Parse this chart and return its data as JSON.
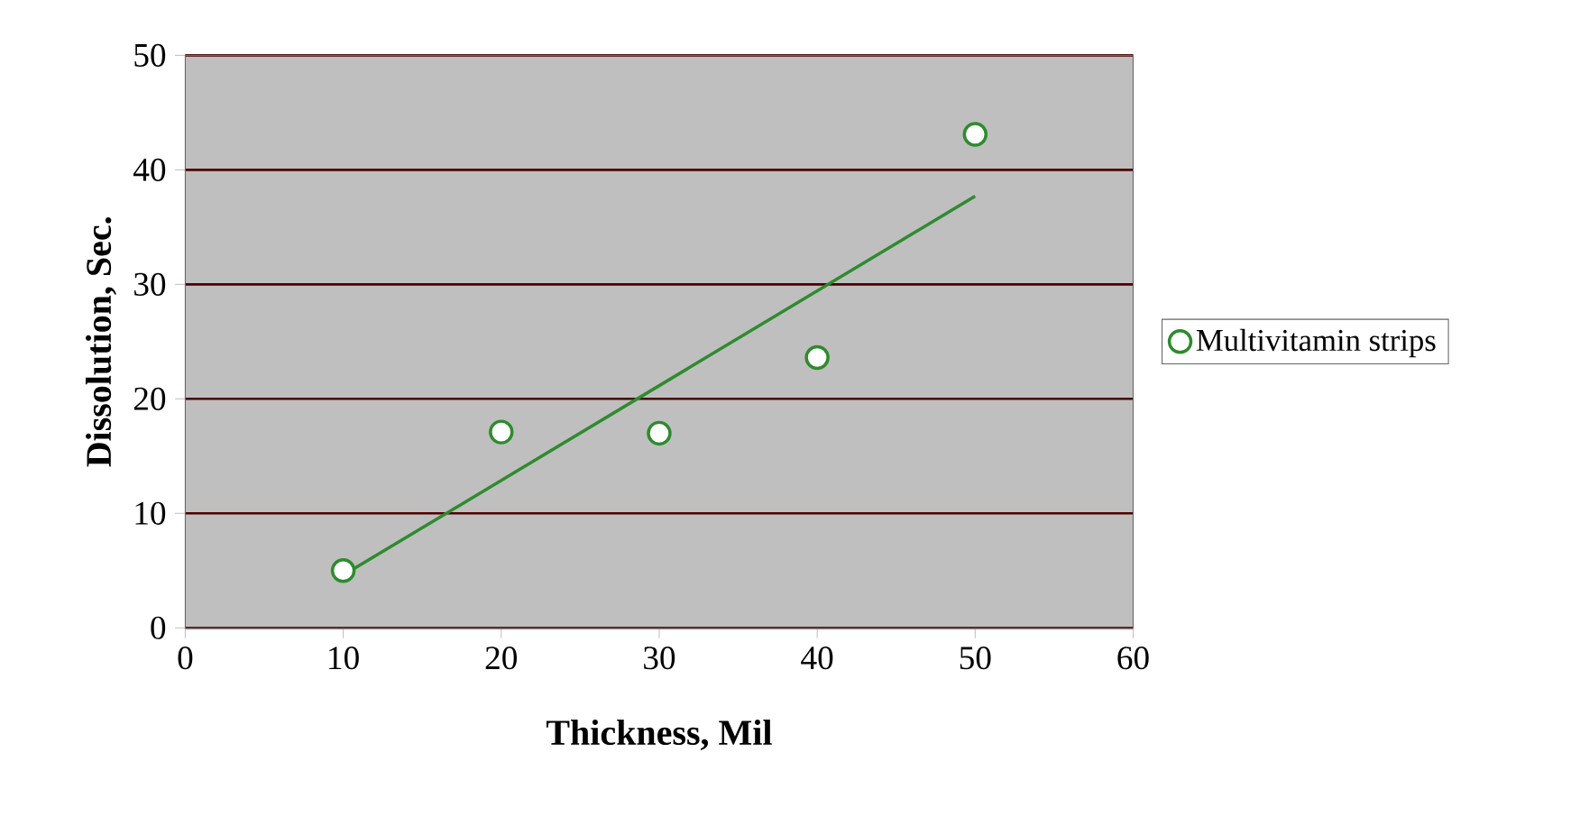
{
  "chart_data": {
    "type": "scatter",
    "xlabel": "Thickness,  Mil",
    "ylabel": "Dissolution, Sec.",
    "x": [
      10,
      20,
      30,
      40,
      50
    ],
    "series": [
      {
        "name": "Multivitamin strips",
        "color": "#2e8b2e",
        "marker": "circle",
        "values": [
          5.0,
          17.1,
          17.0,
          23.6,
          43.1
        ]
      },
      {
        "type": "line",
        "x": [
          10,
          50
        ],
        "values": [
          4.6,
          37.7
        ],
        "color": "#2e8b2e"
      }
    ],
    "xlim": [
      0,
      60
    ],
    "ylim": [
      0,
      50
    ],
    "xticks": [
      0,
      10,
      20,
      30,
      40,
      50,
      60
    ],
    "yticks": [
      0,
      10,
      20,
      30,
      40,
      50
    ],
    "grid": "y",
    "legend": "right"
  }
}
